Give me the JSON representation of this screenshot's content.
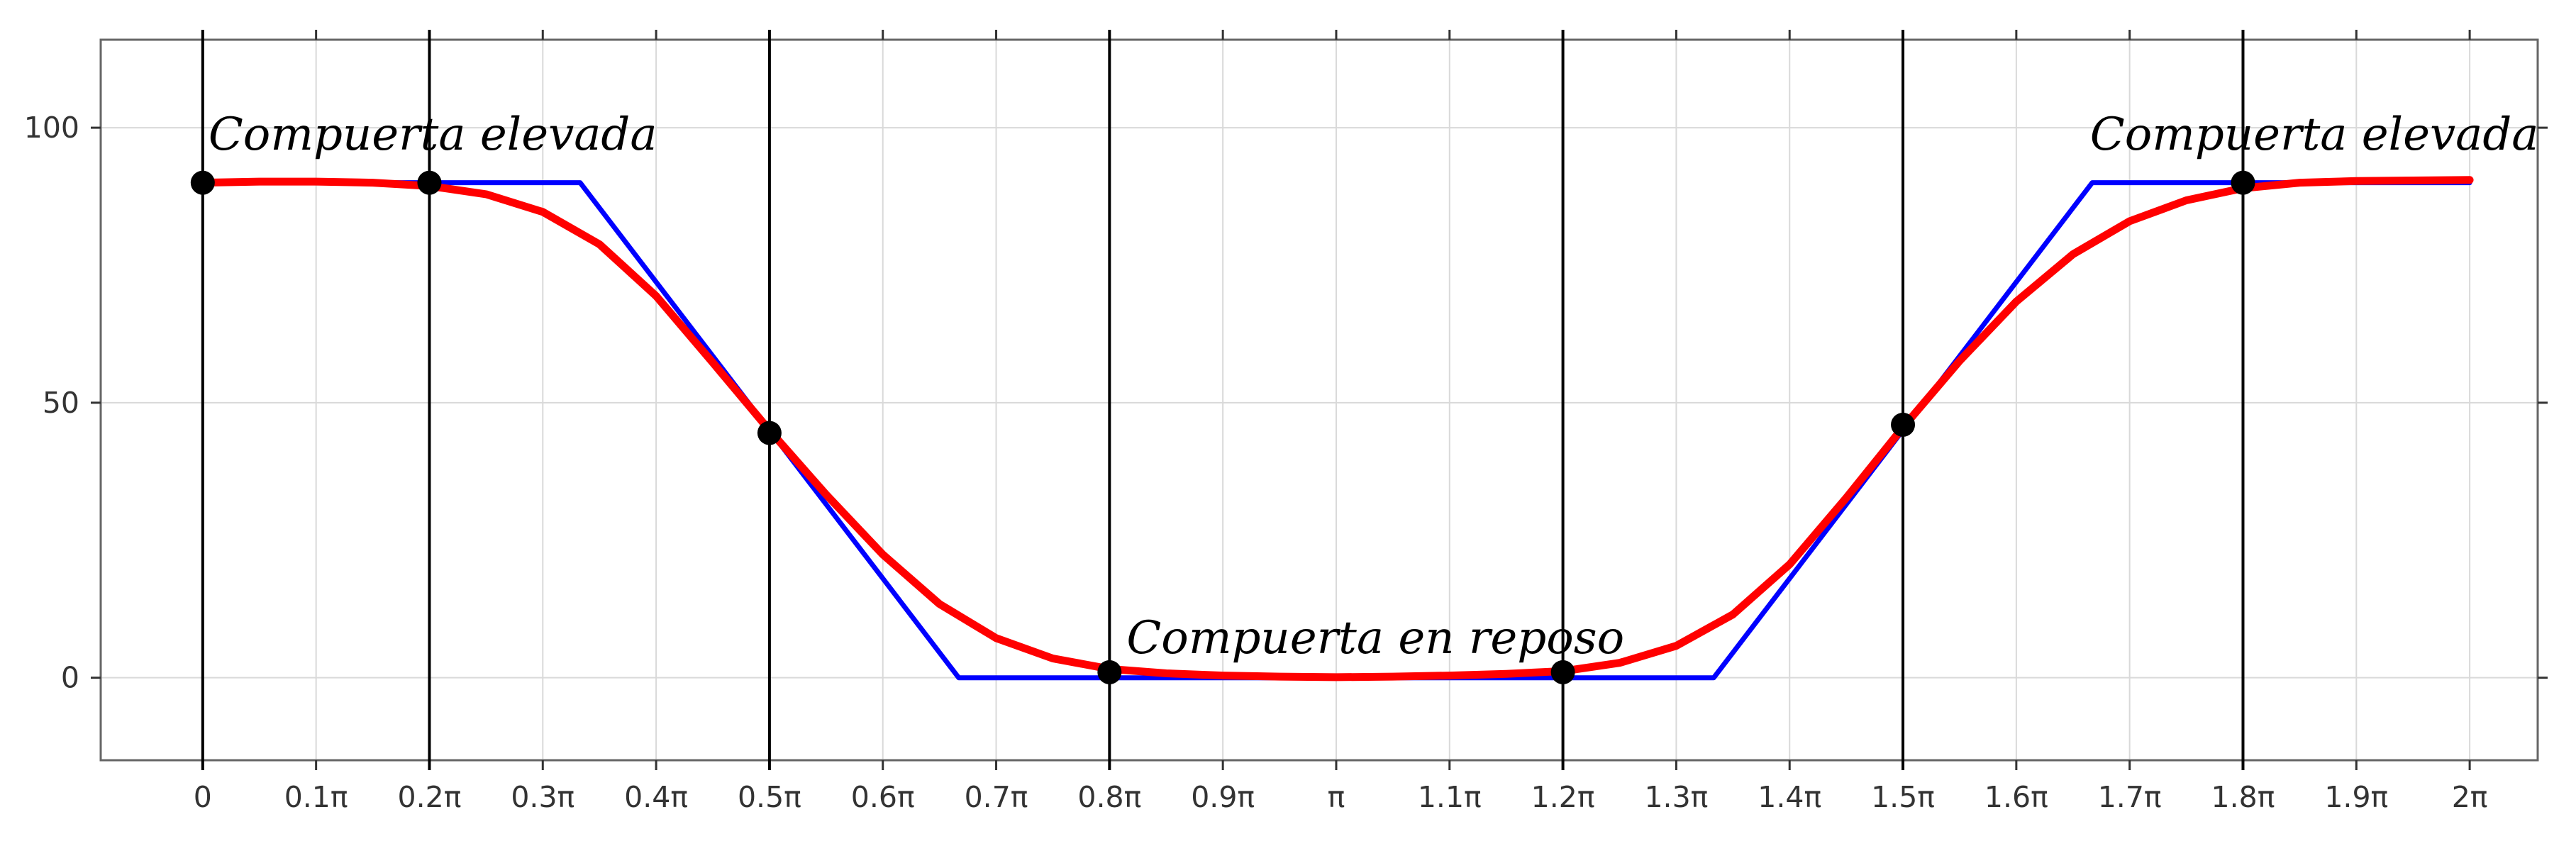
{
  "chart_data": {
    "type": "line",
    "title": "",
    "xlabel": "",
    "ylabel": "",
    "xlim": [
      -0.09,
      2.06
    ],
    "ylim": [
      -15,
      116
    ],
    "grid": true,
    "x_ticks": [
      0,
      0.1,
      0.2,
      0.3,
      0.4,
      0.5,
      0.6,
      0.7,
      0.8,
      0.9,
      1.0,
      1.1,
      1.2,
      1.3,
      1.4,
      1.5,
      1.6,
      1.7,
      1.8,
      1.9,
      2.0
    ],
    "x_tick_labels": [
      "0",
      "0.1π",
      "0.2π",
      "0.3π",
      "0.4π",
      "0.5π",
      "0.6π",
      "0.7π",
      "0.8π",
      "0.9π",
      "π",
      "1.1π",
      "1.2π",
      "1.3π",
      "1.4π",
      "1.5π",
      "1.6π",
      "1.7π",
      "1.8π",
      "1.9π",
      "2π"
    ],
    "y_ticks": [
      0,
      50,
      100
    ],
    "y_tick_labels": [
      "0",
      "50",
      "100"
    ],
    "vertical_lines": [
      0,
      0.2,
      0.5,
      0.8,
      1.2,
      1.5,
      1.8
    ],
    "series": [
      {
        "color": "#0000ff",
        "x": [
          0,
          0.333,
          0.667,
          1.333,
          1.667,
          2.0
        ],
        "y": [
          90,
          90,
          0,
          0,
          90,
          90
        ]
      },
      {
        "color": "#ff0000",
        "x": [
          0,
          0.05,
          0.1,
          0.15,
          0.2,
          0.25,
          0.3,
          0.35,
          0.4,
          0.45,
          0.5,
          0.55,
          0.6,
          0.65,
          0.7,
          0.75,
          0.8,
          0.85,
          0.9,
          0.95,
          1.0,
          1.05,
          1.1,
          1.15,
          1.2,
          1.25,
          1.3,
          1.35,
          1.4,
          1.45,
          1.5,
          1.55,
          1.6,
          1.65,
          1.7,
          1.75,
          1.8,
          1.85,
          1.9,
          1.95,
          2.0
        ],
        "y": [
          90,
          90.2,
          90.2,
          90,
          89.4,
          87.9,
          84.7,
          78.8,
          69.4,
          57.3,
          45,
          33.3,
          22.4,
          13.4,
          7.2,
          3.5,
          1.6,
          0.8,
          0.4,
          0.2,
          0.1,
          0.2,
          0.4,
          0.7,
          1.2,
          2.7,
          5.8,
          11.5,
          20.6,
          32.7,
          45.5,
          57.6,
          68.4,
          77.0,
          83.0,
          86.8,
          89.0,
          90.0,
          90.3,
          90.4,
          90.5
        ]
      }
    ],
    "points": {
      "color": "#000000",
      "x": [
        0,
        0.2,
        0.5,
        0.8,
        1.2,
        1.5,
        1.8
      ],
      "y": [
        90,
        90,
        44.5,
        1,
        1,
        46,
        90
      ]
    },
    "annotations": [
      {
        "text": "Compuerta elevada",
        "x": 0.005,
        "y": 96
      },
      {
        "text": "Compuerta en reposo",
        "x": 0.815,
        "y": 4.5
      },
      {
        "text": "Compuerta elevada",
        "x": 1.665,
        "y": 96
      }
    ]
  }
}
